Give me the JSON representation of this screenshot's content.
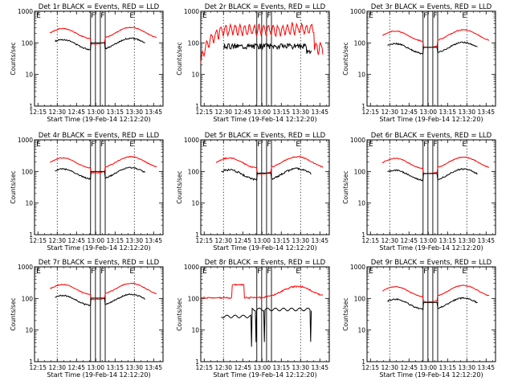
{
  "shared": {
    "xlabel": "Start Time (19-Feb-14 12:12:20)",
    "ylabel": "Counts/sec",
    "x_tick_labels": [
      "12:15",
      "12:30",
      "12:45",
      "13:00",
      "13:15",
      "13:30",
      "13:45"
    ],
    "x_tick_minutes": [
      2.67,
      17.67,
      32.67,
      47.67,
      62.67,
      77.67,
      92.67
    ],
    "x_range_minutes": [
      0,
      100
    ],
    "y_tick_labels": [
      "1",
      "10",
      "100",
      "1000"
    ],
    "y_tick_values": [
      1,
      10,
      100,
      1000
    ],
    "y_range": [
      1,
      1000
    ],
    "y_scale": "log",
    "marker_labels": [
      "E",
      "F",
      "F",
      "E"
    ],
    "colors": {
      "events": "#000000",
      "lld": "#ff0000",
      "axes": "#000000"
    }
  },
  "chart_data": [
    {
      "type": "line",
      "title": "Det 1r BLACK = Events, RED = LLD",
      "shape": "smooth",
      "lld_level": 180,
      "ev_ratio": 0.45,
      "gap": [
        0.7,
        0.62
      ],
      "noise": 0.03,
      "lines": [
        17.67,
        43.6,
        47.4,
        51.2,
        55.0,
        77.67
      ]
    },
    {
      "type": "line",
      "title": "Det 2r BLACK = Events, RED = LLD",
      "shape": "noisy",
      "lld_level": 160,
      "ev_ratio": 0.45,
      "gap": [
        0.8,
        0.72
      ],
      "noise": 0.12,
      "lines": [
        17.67,
        43.6,
        47.4,
        51.2,
        55.0,
        77.67
      ]
    },
    {
      "type": "line",
      "title": "Det 3r BLACK = Events, RED = LLD",
      "shape": "smooth",
      "lld_level": 150,
      "ev_ratio": 0.4,
      "gap": [
        0.65,
        0.6
      ],
      "noise": 0.03,
      "lines": [
        17.67,
        43.6,
        47.4,
        51.2,
        55.0,
        77.67
      ]
    },
    {
      "type": "line",
      "title": "Det 4r BLACK = Events, RED = LLD",
      "shape": "smooth",
      "lld_level": 170,
      "ev_ratio": 0.45,
      "gap": [
        0.72,
        0.65
      ],
      "noise": 0.03,
      "lines": [
        17.67,
        43.6,
        47.4,
        51.2,
        55.0,
        77.67
      ]
    },
    {
      "type": "line",
      "title": "Det 5r BLACK = Events, RED = LLD",
      "shape": "smooth",
      "lld_level": 170,
      "ev_ratio": 0.42,
      "gap": [
        0.68,
        0.62
      ],
      "noise": 0.04,
      "lines": [
        17.67,
        43.6,
        47.4,
        51.2,
        55.0,
        77.67
      ]
    },
    {
      "type": "line",
      "title": "Det 6r BLACK = Events, RED = LLD",
      "shape": "smooth",
      "lld_level": 165,
      "ev_ratio": 0.42,
      "gap": [
        0.7,
        0.62
      ],
      "noise": 0.03,
      "lines": [
        17.67,
        43.6,
        47.4,
        51.2,
        55.0,
        77.67
      ]
    },
    {
      "type": "line",
      "title": "Det 7r BLACK = Events, RED = LLD",
      "shape": "smooth",
      "lld_level": 175,
      "ev_ratio": 0.45,
      "gap": [
        0.72,
        0.65
      ],
      "noise": 0.03,
      "lines": [
        17.67,
        43.6,
        47.4,
        51.2,
        55.0,
        77.67
      ]
    },
    {
      "type": "line",
      "title": "Det 8r BLACK = Events, RED = LLD",
      "shape": "spiky",
      "lld_level": 150,
      "ev_ratio": 0.3,
      "gap": [
        0.95,
        0.9
      ],
      "noise": 0.05,
      "lines": [
        17.67,
        43.6,
        47.4,
        51.2,
        55.0,
        77.67
      ]
    },
    {
      "type": "line",
      "title": "Det 9r BLACK = Events, RED = LLD",
      "shape": "smooth",
      "lld_level": 150,
      "ev_ratio": 0.4,
      "gap": [
        0.7,
        0.62
      ],
      "noise": 0.03,
      "lines": [
        17.67,
        43.6,
        47.4,
        51.2,
        55.0,
        77.67
      ]
    }
  ]
}
